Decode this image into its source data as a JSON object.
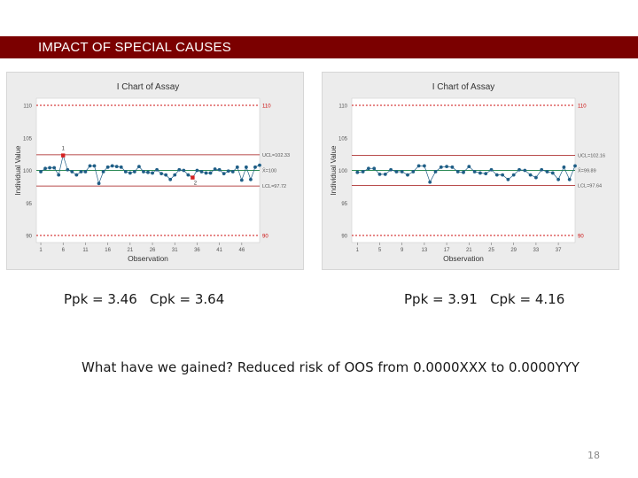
{
  "slide": {
    "title": "IMPACT OF SPECIAL CAUSES",
    "caption_left": "Ppk = 3.46   Cpk = 3.64",
    "caption_right": "Ppk = 3.91   Cpk = 4.16",
    "question": "What have we gained? Reduced risk of OOS from 0.0000XXX to 0.0000YYY",
    "page_number": "18"
  },
  "colors": {
    "title_bar": "#7b0000",
    "series": "#1f5e86",
    "center_line": "#2e8b57",
    "control_limit": "#a01010",
    "spec_limit": "#cc1010",
    "out_of_control": "#d62020"
  },
  "chart_data": [
    {
      "type": "line",
      "title": "I Chart of Assay",
      "xlabel": "Observation",
      "ylabel": "Individual Value",
      "ylim": [
        90,
        110
      ],
      "xlim": [
        0,
        50
      ],
      "yticks": [
        "90",
        "95",
        "100",
        "105",
        "110"
      ],
      "xticks": [
        {
          "x": 1,
          "label": "1"
        },
        {
          "x": 6,
          "label": "6"
        },
        {
          "x": 11,
          "label": "11"
        },
        {
          "x": 16,
          "label": "16"
        },
        {
          "x": 21,
          "label": "21"
        },
        {
          "x": 26,
          "label": "26"
        },
        {
          "x": 31,
          "label": "31"
        },
        {
          "x": 36,
          "label": "36"
        },
        {
          "x": 41,
          "label": "41"
        },
        {
          "x": 46,
          "label": "46"
        }
      ],
      "center_line": {
        "value": 100.0,
        "label": "X̄=100"
      },
      "ucl": {
        "value": 102.4,
        "label": "UCL=102.33"
      },
      "lcl": {
        "value": 97.6,
        "label": "LCL=97.72"
      },
      "spec_limits": [
        {
          "value": 110,
          "label": "110"
        },
        {
          "value": 90,
          "label": "90"
        }
      ],
      "flags": [
        {
          "x": 6,
          "label": "1"
        },
        {
          "x": 35,
          "label": "2"
        }
      ],
      "grid": false,
      "x": [
        1,
        2,
        3,
        4,
        5,
        6,
        7,
        8,
        9,
        10,
        11,
        12,
        13,
        14,
        15,
        16,
        17,
        18,
        19,
        20,
        21,
        22,
        23,
        24,
        25,
        26,
        27,
        28,
        29,
        30,
        31,
        32,
        33,
        34,
        35,
        36,
        37,
        38,
        39,
        40,
        41,
        42,
        43,
        44,
        45,
        46,
        47,
        48,
        49,
        50
      ],
      "series": [
        {
          "values": [
            99.8,
            100.3,
            100.4,
            100.4,
            99.3,
            102.3,
            100.1,
            99.8,
            99.3,
            99.8,
            99.8,
            100.7,
            100.7,
            98.0,
            99.8,
            100.5,
            100.7,
            100.6,
            100.5,
            99.8,
            99.6,
            99.8,
            100.6,
            99.8,
            99.7,
            99.6,
            100.1,
            99.5,
            99.3,
            98.6,
            99.3,
            100.1,
            100.0,
            99.3,
            98.9,
            100.0,
            99.8,
            99.6,
            99.6,
            100.2,
            100.1,
            99.5,
            99.9,
            99.8,
            100.5,
            98.5,
            100.5,
            98.6,
            100.5,
            100.8
          ]
        }
      ]
    },
    {
      "type": "line",
      "title": "I Chart of Assay",
      "xlabel": "Observation",
      "ylabel": "Individual Value",
      "ylim": [
        90,
        110
      ],
      "xlim": [
        0,
        40
      ],
      "yticks": [
        "90",
        "95",
        "100",
        "105",
        "110"
      ],
      "xticks": [
        {
          "x": 1,
          "label": "1"
        },
        {
          "x": 5,
          "label": "5"
        },
        {
          "x": 9,
          "label": "9"
        },
        {
          "x": 13,
          "label": "13"
        },
        {
          "x": 17,
          "label": "17"
        },
        {
          "x": 21,
          "label": "21"
        },
        {
          "x": 25,
          "label": "25"
        },
        {
          "x": 29,
          "label": "29"
        },
        {
          "x": 33,
          "label": "33"
        },
        {
          "x": 37,
          "label": "37"
        }
      ],
      "center_line": {
        "value": 100.0,
        "label": "X̄=99.89"
      },
      "ucl": {
        "value": 102.3,
        "label": "UCL=102.16"
      },
      "lcl": {
        "value": 97.7,
        "label": "LCL=97.64"
      },
      "spec_limits": [
        {
          "value": 110,
          "label": "110"
        },
        {
          "value": 90,
          "label": "90"
        }
      ],
      "flags": [],
      "grid": false,
      "x": [
        1,
        2,
        3,
        4,
        5,
        6,
        7,
        8,
        9,
        10,
        11,
        12,
        13,
        14,
        15,
        16,
        17,
        18,
        19,
        20,
        21,
        22,
        23,
        24,
        25,
        26,
        27,
        28,
        29,
        30,
        31,
        32,
        33,
        34,
        35,
        36,
        37,
        38,
        39,
        40
      ],
      "series": [
        {
          "values": [
            99.7,
            99.8,
            100.3,
            100.3,
            99.4,
            99.4,
            100.1,
            99.8,
            99.8,
            99.3,
            99.8,
            100.7,
            100.7,
            98.2,
            99.8,
            100.5,
            100.6,
            100.5,
            99.8,
            99.7,
            100.6,
            99.8,
            99.6,
            99.5,
            100.1,
            99.3,
            99.3,
            98.6,
            99.3,
            100.1,
            100.0,
            99.3,
            98.9,
            100.1,
            99.8,
            99.6,
            98.6,
            100.5,
            98.6,
            100.7
          ]
        }
      ]
    }
  ]
}
